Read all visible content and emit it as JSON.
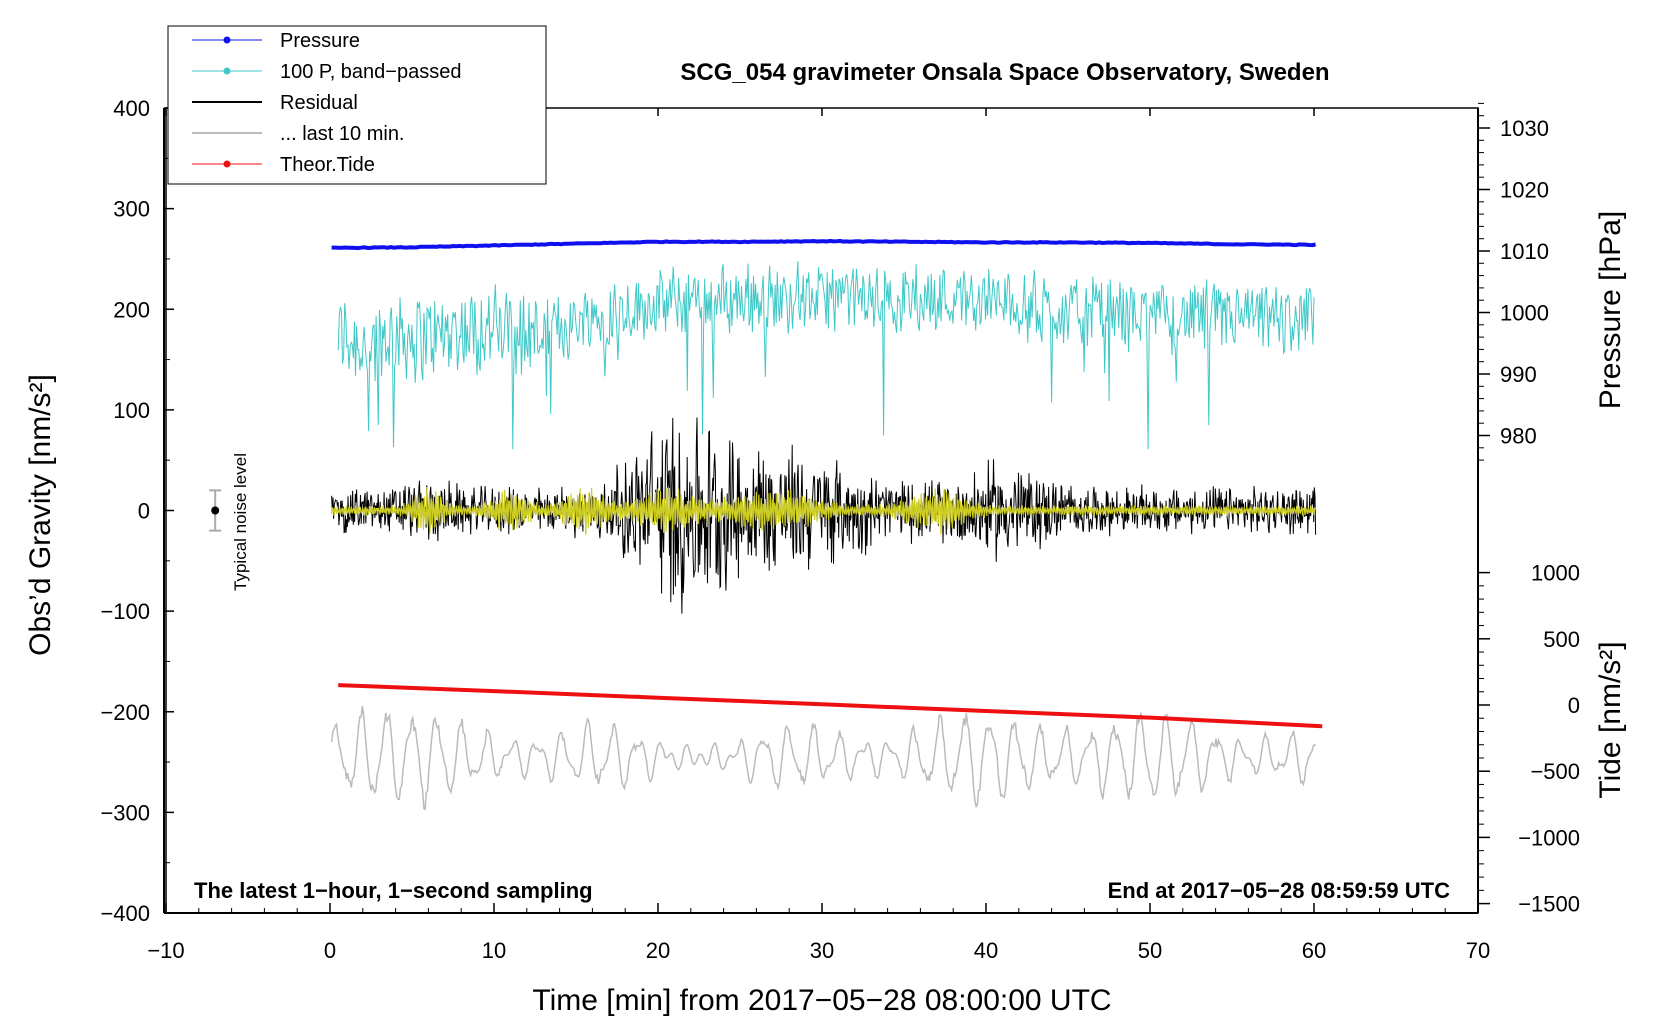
{
  "chart_data": {
    "type": "line",
    "title": "SCG_054 gravimeter Onsala Space Observatory, Sweden",
    "xlabel": "Time [min] from 2017−05−28 08:00:00 UTC",
    "xlim": [
      -10,
      70
    ],
    "x_ticks": [
      "−10",
      "0",
      "10",
      "20",
      "30",
      "40",
      "50",
      "60",
      "70"
    ],
    "ylabel_main": "Obs’d Gravity [nm/s²]",
    "ylim_main": [
      -400,
      400
    ],
    "y_ticks_main": [
      "400",
      "300",
      "200",
      "100",
      "0",
      "−100",
      "−200",
      "−300",
      "−400"
    ],
    "ylabel_pressure": "Pressure [hPa]",
    "pressure_ticks": [
      "1030",
      "1020",
      "1010",
      "1000",
      "990",
      "980"
    ],
    "ylabel_tide": "Tide [nm/s²]",
    "tide_ticks": [
      "1000",
      "500",
      "0",
      "−500",
      "−1000",
      "−1500"
    ],
    "left_annotation": "The latest 1−hour, 1−second sampling",
    "right_annotation": "End at 2017−05−28 08:59:59 UTC",
    "noise_label": "Typical noise level",
    "noise_level": {
      "x": -7,
      "y": 0,
      "err": 20
    },
    "legend": [
      {
        "label": "Pressure",
        "color": "#1010ee",
        "marker": true
      },
      {
        "label": "100 P, band−passed",
        "color": "#40c8c8",
        "marker": true
      },
      {
        "label": "Residual",
        "color": "#000000",
        "marker": false
      },
      {
        "label": "... last 10 min.",
        "color": "#bbbbbb",
        "marker": false
      },
      {
        "label": "Theor.Tide",
        "color": "#ee1010",
        "marker": true
      }
    ],
    "series": [
      {
        "name": "Pressure",
        "axis": "pressure_hPa",
        "color": "#1010ee",
        "x": [
          0,
          5,
          10,
          15,
          20,
          25,
          30,
          35,
          40,
          45,
          50,
          55,
          60
        ],
        "values": [
          1010.5,
          1010.6,
          1010.9,
          1011.2,
          1011.5,
          1011.5,
          1011.6,
          1011.5,
          1011.4,
          1011.4,
          1011.3,
          1011.1,
          1011.0
        ]
      },
      {
        "name": "100 P, band−passed",
        "axis": "gravity_nm_s2",
        "color": "#40c8c8",
        "x": [
          0,
          2,
          4,
          6,
          8,
          10,
          12,
          14,
          16,
          18,
          20,
          22,
          24,
          26,
          28,
          30,
          32,
          34,
          36,
          38,
          40,
          42,
          44,
          46,
          48,
          50,
          52,
          54,
          56,
          58,
          60
        ],
        "values": [
          180,
          165,
          175,
          172,
          178,
          180,
          175,
          182,
          192,
          200,
          205,
          208,
          210,
          210,
          212,
          212,
          210,
          212,
          210,
          212,
          208,
          205,
          200,
          198,
          195,
          195,
          193,
          192,
          190,
          190,
          190
        ]
      },
      {
        "name": "Residual",
        "axis": "gravity_nm_s2",
        "color": "#000000",
        "x": [
          0,
          5,
          10,
          15,
          20,
          25,
          30,
          35,
          40,
          45,
          50,
          55,
          60
        ],
        "values": [
          0,
          0,
          0,
          0,
          0,
          0,
          0,
          0,
          0,
          0,
          0,
          0,
          0
        ]
      },
      {
        "name": "... last 10 min.",
        "axis": "gravity_nm_s2",
        "color": "#bbbbbb",
        "x": [
          0,
          5,
          10,
          15,
          20,
          25,
          30,
          35,
          40,
          45,
          50,
          55,
          60
        ],
        "values": [
          -245,
          -245,
          -245,
          -245,
          -245,
          -245,
          -245,
          -245,
          -245,
          -245,
          -245,
          -245,
          -245
        ]
      },
      {
        "name": "Theor.Tide",
        "axis": "tide_nm_s2",
        "color": "#ee1010",
        "x": [
          0.5,
          10,
          20,
          30,
          40,
          50,
          60.5
        ],
        "values": [
          150,
          105,
          55,
          5,
          -45,
          -95,
          -160
        ]
      }
    ],
    "colors": {
      "residual_highlight": "#cccc22"
    }
  }
}
